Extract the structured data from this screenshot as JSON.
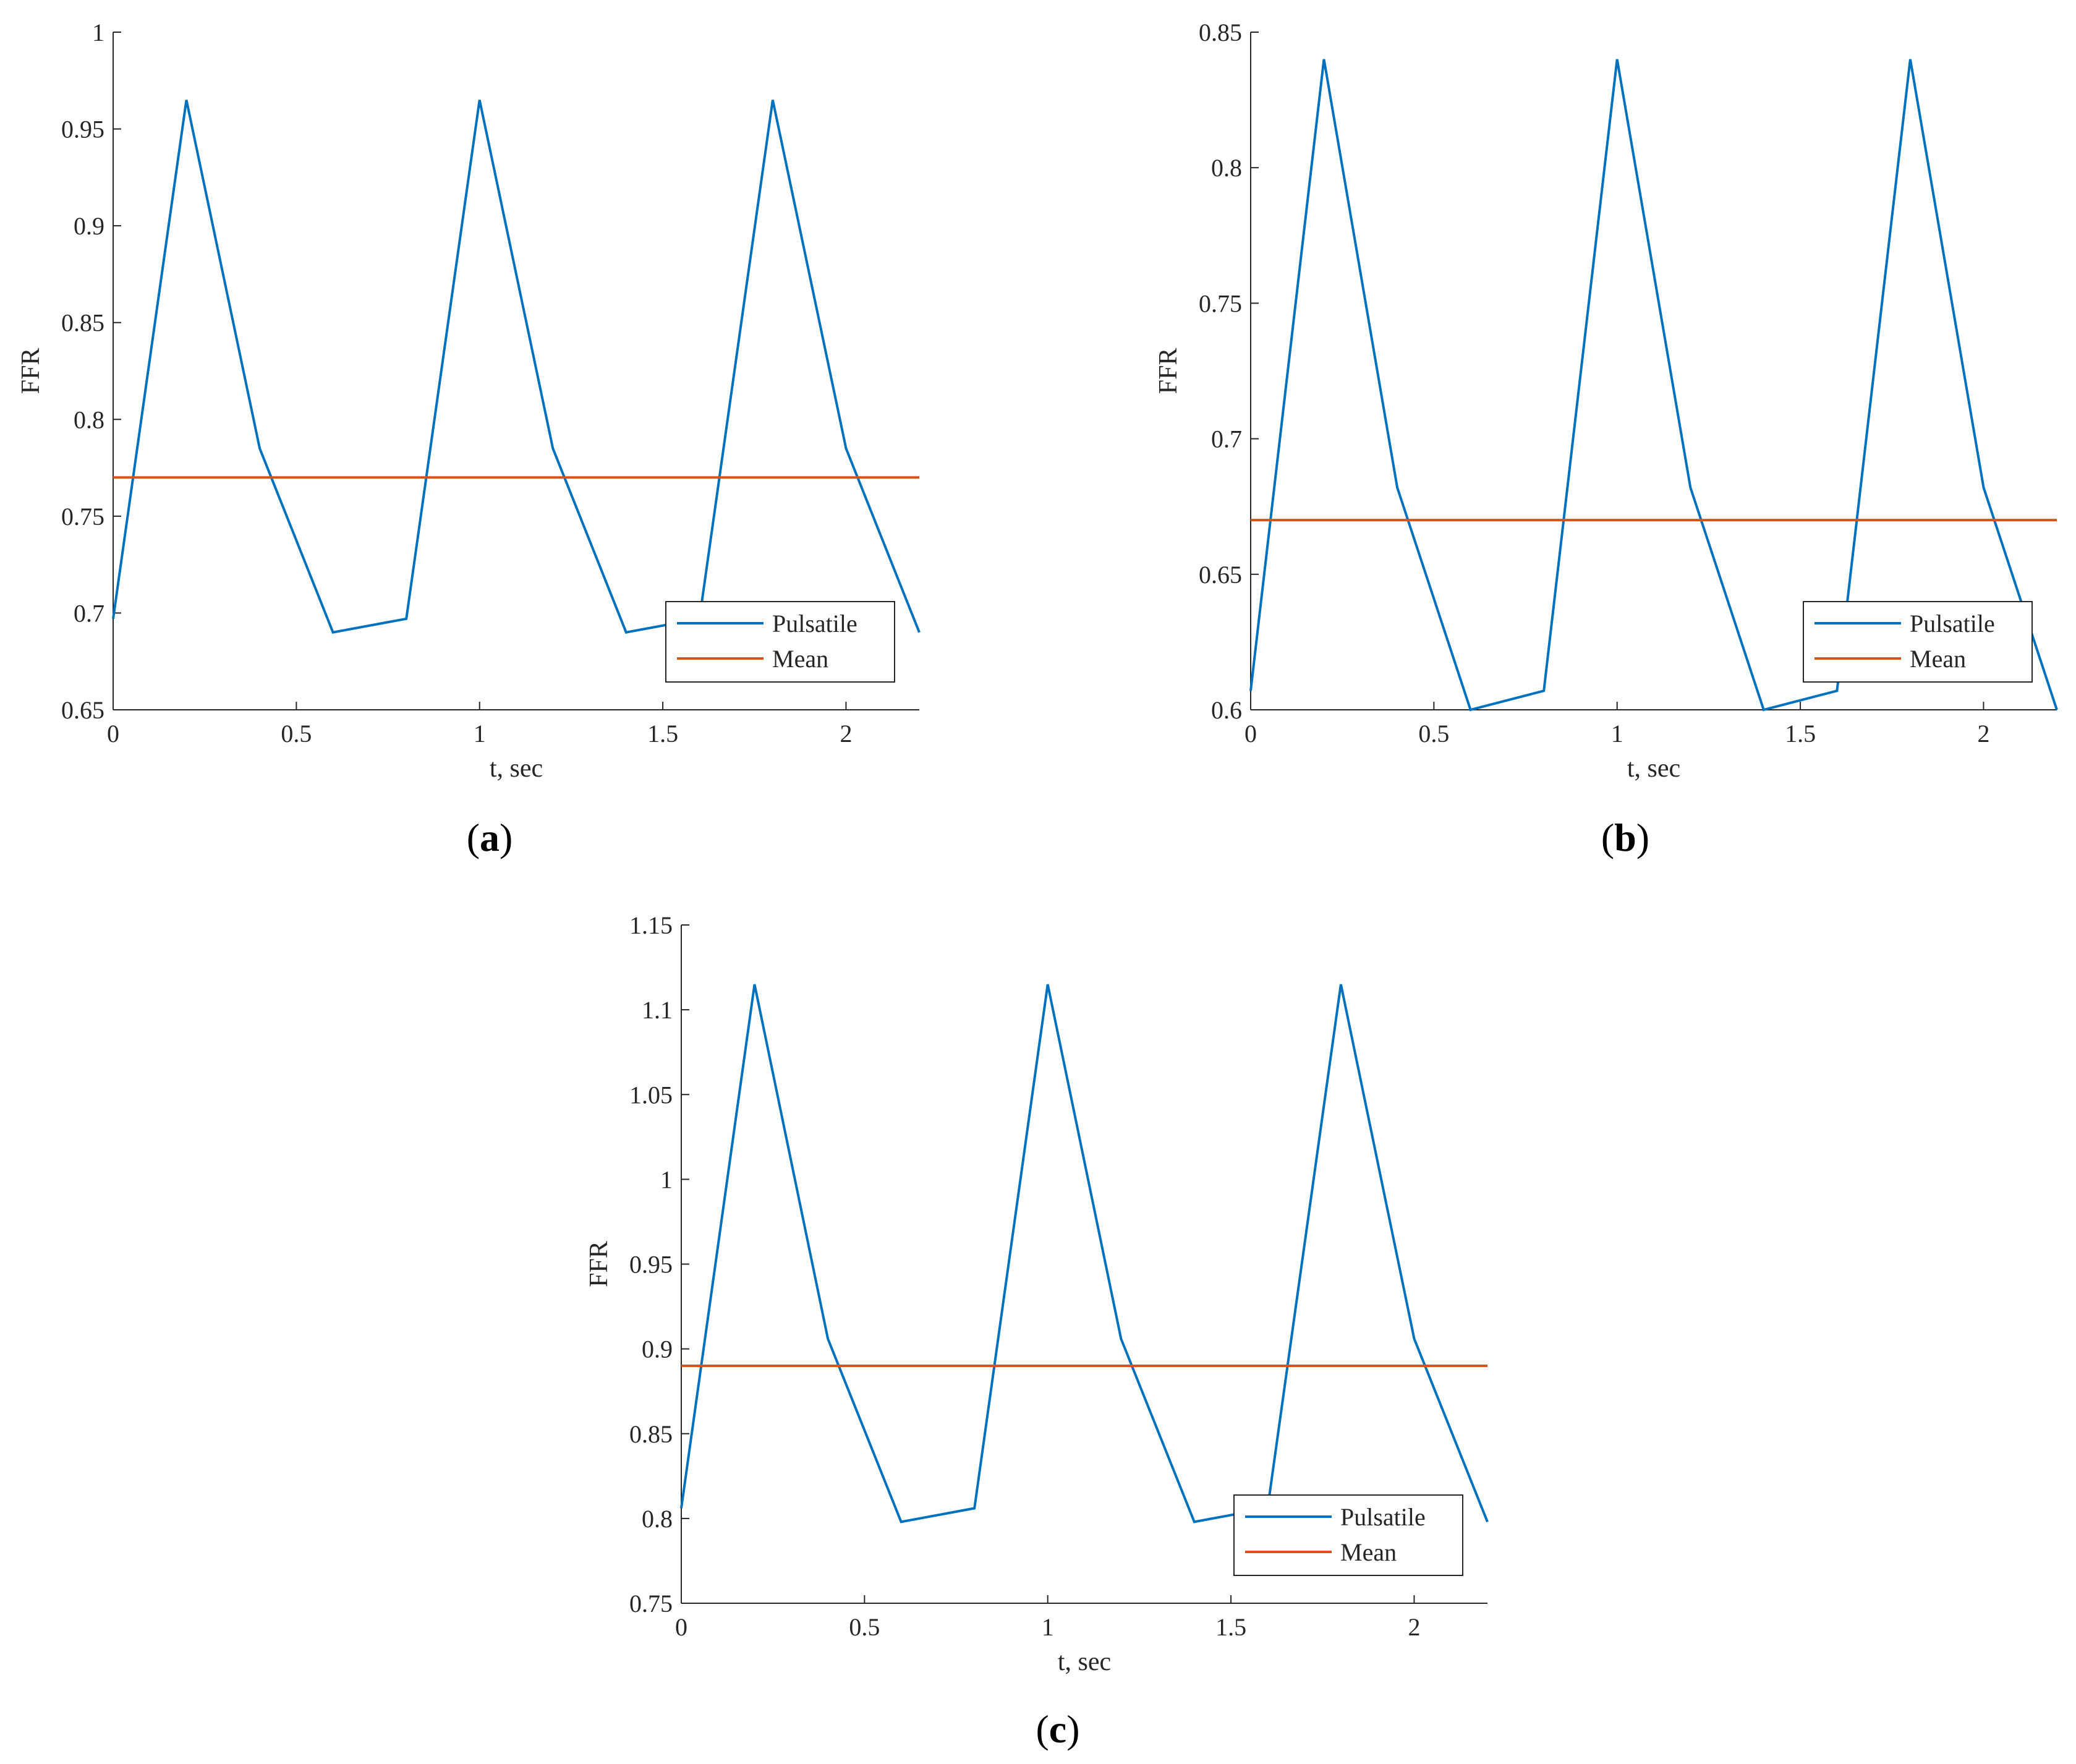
{
  "figure": {
    "panels": [
      {
        "label_open": "(",
        "label_letter": "a",
        "label_close": ")"
      },
      {
        "label_open": "(",
        "label_letter": "b",
        "label_close": ")"
      },
      {
        "label_open": "(",
        "label_letter": "c",
        "label_close": ")"
      }
    ]
  },
  "colors": {
    "pulsatile": "#0072BD",
    "mean": "#D95319",
    "axis": "#262626",
    "background": "#ffffff"
  },
  "chart_data": [
    {
      "type": "line",
      "xlabel": "t, sec",
      "ylabel": "FFR",
      "xlim": [
        0,
        2.2
      ],
      "ylim": [
        0.65,
        1.0
      ],
      "xticks": [
        0,
        0.5,
        1,
        1.5,
        2
      ],
      "xtick_labels": [
        "0",
        "0.5",
        "1",
        "1.5",
        "2"
      ],
      "yticks": [
        0.65,
        0.7,
        0.75,
        0.8,
        0.85,
        0.9,
        0.95,
        1.0
      ],
      "ytick_labels": [
        "0.65",
        "0.7",
        "0.75",
        "0.8",
        "0.85",
        "0.9",
        "0.95",
        "1"
      ],
      "grid": false,
      "legend_position": "bottom-right",
      "series": [
        {
          "name": "Pulsatile",
          "x": [
            0,
            0.2,
            0.4,
            0.6,
            0.8,
            1.0,
            1.2,
            1.4,
            1.6,
            1.8,
            2.0,
            2.2
          ],
          "y": [
            0.697,
            0.965,
            0.785,
            0.69,
            0.697,
            0.965,
            0.785,
            0.69,
            0.697,
            0.965,
            0.785,
            0.69
          ]
        },
        {
          "name": "Mean",
          "x": [
            0,
            2.2
          ],
          "y": [
            0.77,
            0.77
          ]
        }
      ]
    },
    {
      "type": "line",
      "xlabel": "t, sec",
      "ylabel": "FFR",
      "xlim": [
        0,
        2.2
      ],
      "ylim": [
        0.6,
        0.85
      ],
      "xticks": [
        0,
        0.5,
        1,
        1.5,
        2
      ],
      "xtick_labels": [
        "0",
        "0.5",
        "1",
        "1.5",
        "2"
      ],
      "yticks": [
        0.6,
        0.65,
        0.7,
        0.75,
        0.8,
        0.85
      ],
      "ytick_labels": [
        "0.6",
        "0.65",
        "0.7",
        "0.75",
        "0.8",
        "0.85"
      ],
      "grid": false,
      "legend_position": "bottom-right",
      "series": [
        {
          "name": "Pulsatile",
          "x": [
            0,
            0.2,
            0.4,
            0.6,
            0.8,
            1.0,
            1.2,
            1.4,
            1.6,
            1.8,
            2.0,
            2.2
          ],
          "y": [
            0.607,
            0.84,
            0.682,
            0.6,
            0.607,
            0.84,
            0.682,
            0.6,
            0.607,
            0.84,
            0.682,
            0.6
          ]
        },
        {
          "name": "Mean",
          "x": [
            0,
            2.2
          ],
          "y": [
            0.67,
            0.67
          ]
        }
      ]
    },
    {
      "type": "line",
      "xlabel": "t, sec",
      "ylabel": "FFR",
      "xlim": [
        0,
        2.2
      ],
      "ylim": [
        0.75,
        1.15
      ],
      "xticks": [
        0,
        0.5,
        1,
        1.5,
        2
      ],
      "xtick_labels": [
        "0",
        "0.5",
        "1",
        "1.5",
        "2"
      ],
      "yticks": [
        0.75,
        0.8,
        0.85,
        0.9,
        0.95,
        1.0,
        1.05,
        1.1,
        1.15
      ],
      "ytick_labels": [
        "0.75",
        "0.8",
        "0.85",
        "0.9",
        "0.95",
        "1",
        "1.05",
        "1.1",
        "1.15"
      ],
      "grid": false,
      "legend_position": "bottom-right",
      "series": [
        {
          "name": "Pulsatile",
          "x": [
            0,
            0.2,
            0.4,
            0.6,
            0.8,
            1.0,
            1.2,
            1.4,
            1.6,
            1.8,
            2.0,
            2.2
          ],
          "y": [
            0.806,
            1.115,
            0.906,
            0.798,
            0.806,
            1.115,
            0.906,
            0.798,
            0.806,
            1.115,
            0.906,
            0.798
          ]
        },
        {
          "name": "Mean",
          "x": [
            0,
            2.2
          ],
          "y": [
            0.89,
            0.89
          ]
        }
      ]
    }
  ]
}
